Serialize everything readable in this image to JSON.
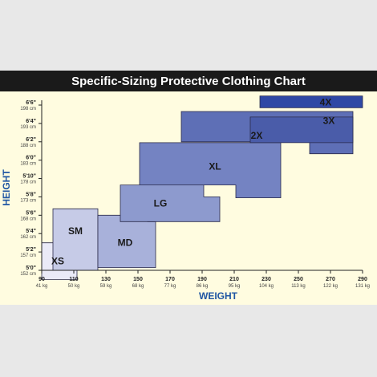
{
  "chart_data": {
    "type": "area",
    "title": "Specific-Sizing Protective Clothing Chart",
    "xlabel": "WEIGHT",
    "ylabel": "HEIGHT",
    "xlim": [
      90,
      290
    ],
    "ylim": [
      60,
      78
    ],
    "x_ticks": [
      {
        "value": 90,
        "label": "90",
        "sub": "41 kg"
      },
      {
        "value": 110,
        "label": "110",
        "sub": "50 kg"
      },
      {
        "value": 130,
        "label": "130",
        "sub": "59 kg"
      },
      {
        "value": 150,
        "label": "150",
        "sub": "68 kg"
      },
      {
        "value": 170,
        "label": "170",
        "sub": "77 kg"
      },
      {
        "value": 190,
        "label": "190",
        "sub": "86 kg"
      },
      {
        "value": 210,
        "label": "210",
        "sub": "95 kg"
      },
      {
        "value": 230,
        "label": "230",
        "sub": "104 kg"
      },
      {
        "value": 250,
        "label": "250",
        "sub": "113 kg"
      },
      {
        "value": 270,
        "label": "270",
        "sub": "122 kg"
      },
      {
        "value": 290,
        "label": "290",
        "sub": "131 kg"
      }
    ],
    "y_ticks": [
      {
        "value": 60,
        "label": "5'0\"",
        "sub": "152 cm"
      },
      {
        "value": 62,
        "label": "5'2\"",
        "sub": "157 cm"
      },
      {
        "value": 64,
        "label": "5'4\"",
        "sub": "162 cm"
      },
      {
        "value": 66,
        "label": "5'6\"",
        "sub": "168 cm"
      },
      {
        "value": 68,
        "label": "5'8\"",
        "sub": "173 cm"
      },
      {
        "value": 70,
        "label": "5'10\"",
        "sub": "178 cm"
      },
      {
        "value": 72,
        "label": "6'0\"",
        "sub": "183 cm"
      },
      {
        "value": 74,
        "label": "6'2\"",
        "sub": "188 cm"
      },
      {
        "value": 76,
        "label": "6'4\"",
        "sub": "193 cm"
      },
      {
        "value": 78,
        "label": "6'6\"",
        "sub": "198 cm"
      }
    ],
    "sizes": [
      {
        "name": "XS",
        "color": "#eaeaf7",
        "label_at": [
          100,
          61
        ],
        "polygon": [
          [
            90,
            59
          ],
          [
            112,
            59
          ],
          [
            112,
            63
          ],
          [
            90,
            63
          ]
        ]
      },
      {
        "name": "SM",
        "color": "#c6cbe7",
        "label_at": [
          111,
          64.3
        ],
        "polygon": [
          [
            97,
            60
          ],
          [
            125,
            60
          ],
          [
            125,
            66.7
          ],
          [
            97,
            66.7
          ]
        ]
      },
      {
        "name": "MD",
        "color": "#a8b1da",
        "label_at": [
          142,
          63
        ],
        "polygon": [
          [
            125,
            60.3
          ],
          [
            161,
            60.3
          ],
          [
            161,
            65.3
          ],
          [
            156,
            65.3
          ],
          [
            156,
            66
          ],
          [
            125,
            66
          ]
        ]
      },
      {
        "name": "LG",
        "color": "#8d9ace",
        "label_at": [
          164,
          67.3
        ],
        "polygon": [
          [
            139,
            65.3
          ],
          [
            201,
            65.3
          ],
          [
            201,
            68
          ],
          [
            191,
            68
          ],
          [
            191,
            69.3
          ],
          [
            139,
            69.3
          ]
        ]
      },
      {
        "name": "XL",
        "color": "#7483c2",
        "label_at": [
          198,
          71.3
        ],
        "polygon": [
          [
            151,
            69.3
          ],
          [
            211,
            69.3
          ],
          [
            211,
            67.9
          ],
          [
            239,
            67.9
          ],
          [
            239,
            73.9
          ],
          [
            151,
            73.9
          ]
        ]
      },
      {
        "name": "2X",
        "color": "#5e6fb6",
        "label_at": [
          224,
          74.7
        ],
        "polygon": [
          [
            177,
            74
          ],
          [
            257,
            74
          ],
          [
            257,
            72.7
          ],
          [
            284,
            72.7
          ],
          [
            284,
            77.3
          ],
          [
            177,
            77.3
          ]
        ]
      },
      {
        "name": "3X",
        "color": "#4a5ca9",
        "label_at": [
          269,
          76.3
        ],
        "polygon": [
          [
            220,
            73.9
          ],
          [
            284,
            73.9
          ],
          [
            284,
            76.7
          ],
          [
            220,
            76.7
          ]
        ]
      },
      {
        "name": "4X",
        "color": "#2f48a5",
        "label_at": [
          267,
          78.3
        ],
        "polygon": [
          [
            226,
            77.7
          ],
          [
            290,
            77.7
          ],
          [
            290,
            79
          ],
          [
            226,
            79
          ]
        ]
      }
    ]
  }
}
